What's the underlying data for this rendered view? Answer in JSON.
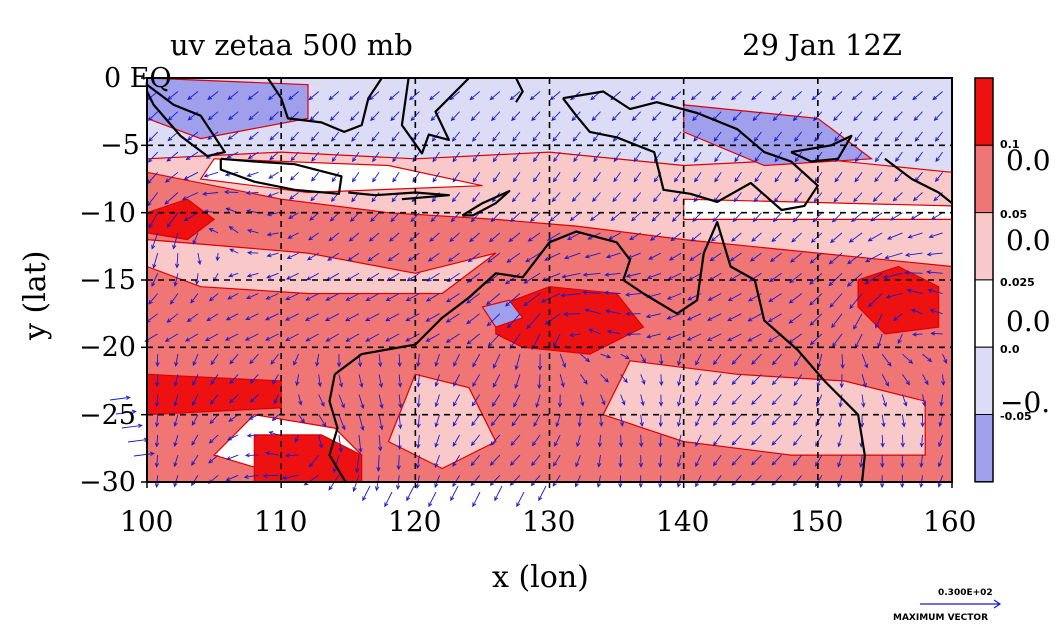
{
  "title": {
    "left": "uv zetaa 500 mb",
    "right": "29 Jan 12Z"
  },
  "axes": {
    "xlabel": "x (lon)",
    "ylabel": "y (lat)",
    "xticks": [
      "100",
      "110",
      "120",
      "130",
      "140",
      "150",
      "160"
    ],
    "yticks": [
      "0 EQ",
      "−5",
      "−10",
      "−15",
      "−20",
      "−25",
      "−30"
    ],
    "xrange": [
      100,
      160
    ],
    "yrange": [
      -30,
      0
    ]
  },
  "colorbar": {
    "levels": [
      "0.1",
      "0.05",
      "0.025",
      "0.0",
      "-0.05"
    ],
    "big_labels": [
      "0.0",
      "0.0",
      "0.0",
      "−0."
    ],
    "colors": [
      "#ee1111",
      "#f07575",
      "#f9c9c9",
      "#ffffff",
      "#dcdcf6",
      "#9f9fec"
    ]
  },
  "vector_legend": {
    "magnitude": "0.300E+02",
    "label": "MAXIMUM VECTOR"
  },
  "colors": {
    "vector": "#1a1acc",
    "contour": "#dd0000",
    "coast": "#000000",
    "grid": "#000000"
  }
}
